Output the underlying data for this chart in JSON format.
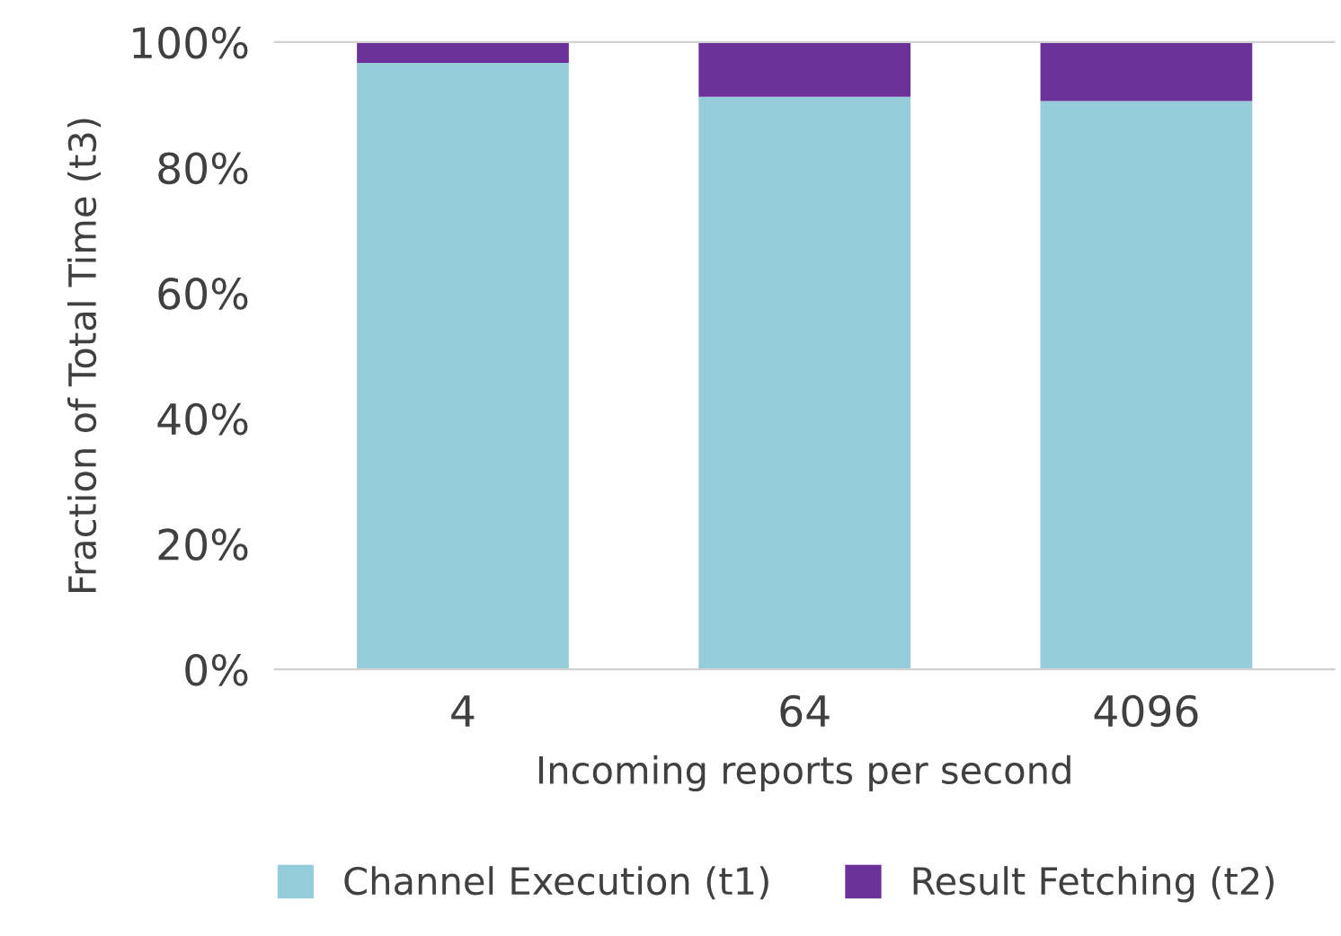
{
  "chart_data": {
    "type": "bar",
    "stacked": true,
    "xlabel": "Incoming reports per second",
    "ylabel": "Fraction of Total Time (t3)",
    "categories": [
      "4",
      "64",
      "4096"
    ],
    "series": [
      {
        "name": "Channel Execution (t1)",
        "color": "#96cddc",
        "values": [
          96.7,
          91.3,
          90.6
        ]
      },
      {
        "name": "Result Fetching (t2)",
        "color": "#6b3399",
        "values": [
          3.3,
          8.7,
          9.4
        ]
      }
    ],
    "ylim": [
      0,
      100
    ],
    "yticks": [
      {
        "value": 0,
        "label": "0%"
      },
      {
        "value": 20,
        "label": "20%"
      },
      {
        "value": 40,
        "label": "40%"
      },
      {
        "value": 60,
        "label": "60%"
      },
      {
        "value": 80,
        "label": "80%"
      },
      {
        "value": 100,
        "label": "100%"
      }
    ],
    "grid": false,
    "legend": "bottom"
  }
}
